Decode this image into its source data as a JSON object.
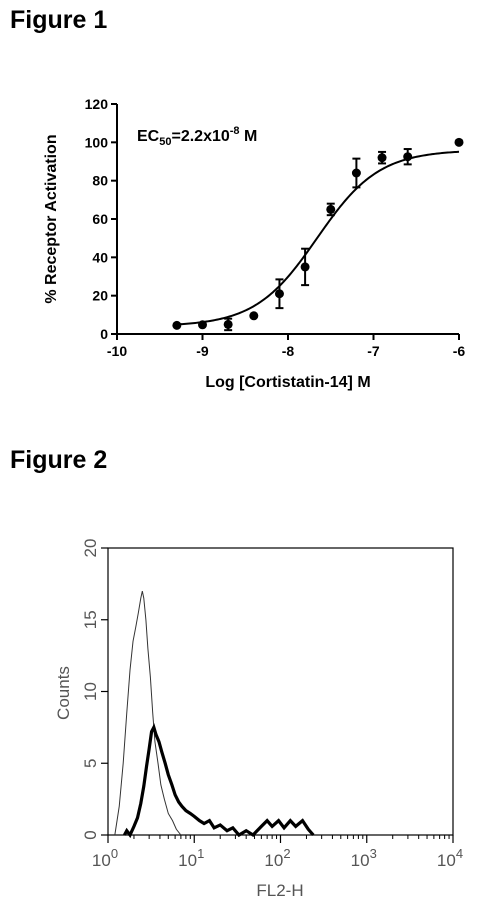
{
  "figure1": {
    "title": "Figure 1",
    "annotation": {
      "prefix": "EC",
      "sub": "50",
      "mid": "=2.2x10",
      "sup": "-8",
      "suffix": " M"
    },
    "chart_data": {
      "type": "scatter",
      "xlabel": "Log [Cortistatin-14] M",
      "ylabel": "% Receptor Activation",
      "xlim": [
        -10,
        -6
      ],
      "ylim": [
        0,
        120
      ],
      "xticks": [
        -10,
        -9,
        -8,
        -7,
        -6
      ],
      "yticks": [
        0,
        20,
        40,
        60,
        80,
        100,
        120
      ],
      "grid": false,
      "series": [
        {
          "points": [
            {
              "x": -9.3,
              "y": 4.5,
              "err": 0
            },
            {
              "x": -9.0,
              "y": 4.8,
              "err": 0
            },
            {
              "x": -8.7,
              "y": 5.0,
              "err": 3.0
            },
            {
              "x": -8.4,
              "y": 9.5,
              "err": 0
            },
            {
              "x": -8.1,
              "y": 21.0,
              "err": 7.5
            },
            {
              "x": -7.8,
              "y": 35.0,
              "err": 9.5
            },
            {
              "x": -7.5,
              "y": 65.0,
              "err": 3.0
            },
            {
              "x": -7.2,
              "y": 84.0,
              "err": 7.5
            },
            {
              "x": -6.9,
              "y": 92.0,
              "err": 3.0
            },
            {
              "x": -6.6,
              "y": 92.5,
              "err": 4.0
            },
            {
              "x": -6.0,
              "y": 100.0,
              "err": 0
            }
          ],
          "fit": {
            "model": "sigmoid",
            "bottom": 4,
            "top": 96,
            "logEC50": -7.66,
            "hill": 1.2
          }
        }
      ]
    }
  },
  "figure2": {
    "title": "Figure 2",
    "chart_data": {
      "type": "area",
      "xlabel": "FL2-H",
      "ylabel": "Counts",
      "x_scale": "log",
      "xlim": [
        1,
        10000
      ],
      "ylim": [
        0,
        20
      ],
      "xticks": [
        {
          "base": "10",
          "exp": "0"
        },
        {
          "base": "10",
          "exp": "1"
        },
        {
          "base": "10",
          "exp": "2"
        },
        {
          "base": "10",
          "exp": "3"
        },
        {
          "base": "10",
          "exp": "4"
        }
      ],
      "yticks": [
        "0",
        "5",
        "10",
        "15",
        "20"
      ],
      "grid": false,
      "series": [
        {
          "style": "thin",
          "points": [
            [
              1.2,
              0
            ],
            [
              1.35,
              2
            ],
            [
              1.5,
              5
            ],
            [
              1.65,
              8.5
            ],
            [
              1.8,
              11.5
            ],
            [
              1.95,
              13.5
            ],
            [
              2.1,
              14.5
            ],
            [
              2.25,
              15.5
            ],
            [
              2.4,
              16.5
            ],
            [
              2.5,
              17.0
            ],
            [
              2.6,
              16.5
            ],
            [
              2.75,
              15
            ],
            [
              2.9,
              13
            ],
            [
              3.1,
              11
            ],
            [
              3.3,
              8.5
            ],
            [
              3.5,
              6.5
            ],
            [
              3.8,
              5
            ],
            [
              4.1,
              3.5
            ],
            [
              4.5,
              2.5
            ],
            [
              5.0,
              1.5
            ],
            [
              5.6,
              1.0
            ],
            [
              6.2,
              0.4
            ],
            [
              7.0,
              0
            ]
          ]
        },
        {
          "style": "thick",
          "points": [
            [
              1.55,
              0
            ],
            [
              1.65,
              0.3
            ],
            [
              1.8,
              0
            ],
            [
              2.0,
              0.6
            ],
            [
              2.2,
              1.2
            ],
            [
              2.4,
              2.2
            ],
            [
              2.6,
              3.4
            ],
            [
              2.8,
              4.8
            ],
            [
              3.0,
              6.0
            ],
            [
              3.2,
              7.2
            ],
            [
              3.4,
              7.5
            ],
            [
              3.6,
              7.0
            ],
            [
              3.9,
              6.5
            ],
            [
              4.2,
              5.8
            ],
            [
              4.6,
              5.0
            ],
            [
              5.0,
              4.2
            ],
            [
              5.5,
              3.5
            ],
            [
              6.0,
              2.8
            ],
            [
              6.6,
              2.3
            ],
            [
              7.2,
              2.0
            ],
            [
              8.0,
              1.7
            ],
            [
              9.0,
              1.5
            ],
            [
              10.0,
              1.3
            ],
            [
              11.5,
              1.0
            ],
            [
              13,
              0.8
            ],
            [
              15,
              1.0
            ],
            [
              17,
              0.5
            ],
            [
              20,
              0.7
            ],
            [
              24,
              0.3
            ],
            [
              28,
              0.5
            ],
            [
              33,
              0
            ],
            [
              40,
              0.3
            ],
            [
              48,
              0
            ],
            [
              60,
              0.6
            ],
            [
              70,
              1.0
            ],
            [
              80,
              0.6
            ],
            [
              95,
              1.0
            ],
            [
              110,
              0.5
            ],
            [
              130,
              1.0
            ],
            [
              150,
              0.6
            ],
            [
              180,
              1.0
            ],
            [
              210,
              0.4
            ],
            [
              240,
              0
            ]
          ]
        }
      ]
    }
  }
}
